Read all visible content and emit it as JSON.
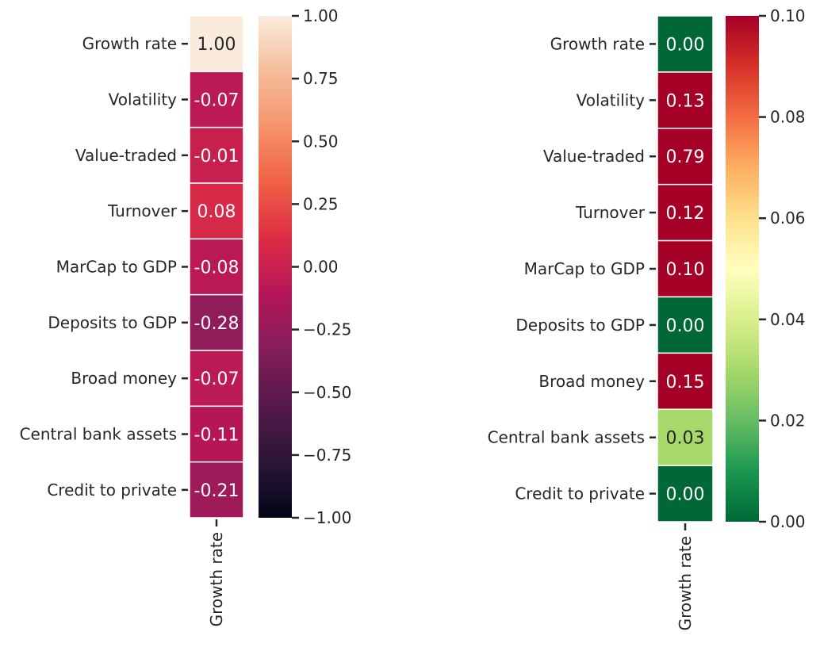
{
  "chart_data": [
    {
      "type": "heatmap",
      "title": "",
      "row_labels": [
        "Growth rate",
        "Volatility",
        "Value-traded",
        "Turnover",
        "MarCap to GDP",
        "Deposits to GDP",
        "Broad money",
        "Central bank assets",
        "Credit to private"
      ],
      "column_labels": [
        "Growth rate"
      ],
      "values": [
        1.0,
        -0.07,
        -0.01,
        0.08,
        -0.08,
        -0.28,
        -0.07,
        -0.11,
        -0.21
      ],
      "value_labels": [
        "1.00",
        "-0.07",
        "-0.01",
        "0.08",
        "-0.08",
        "-0.28",
        "-0.07",
        "-0.11",
        "-0.21"
      ],
      "colormap": "rocket",
      "color_range": [
        -1.0,
        1.0
      ],
      "colorbar_ticks": [
        1.0,
        0.75,
        0.5,
        0.25,
        0.0,
        -0.25,
        -0.5,
        -0.75,
        -1.0
      ],
      "colorbar_tick_labels": [
        "1.00",
        "0.75",
        "0.50",
        "0.25",
        "0.00",
        "−0.25",
        "−0.50",
        "−0.75",
        "−1.00"
      ],
      "colorbar_position": "right",
      "grid": false
    },
    {
      "type": "heatmap",
      "title": "",
      "row_labels": [
        "Growth rate",
        "Volatility",
        "Value-traded",
        "Turnover",
        "MarCap to GDP",
        "Deposits to GDP",
        "Broad money",
        "Central bank assets",
        "Credit to private"
      ],
      "column_labels": [
        "Growth rate"
      ],
      "values": [
        0.0,
        0.13,
        0.79,
        0.12,
        0.1,
        0.0,
        0.15,
        0.03,
        0.0
      ],
      "value_labels": [
        "0.00",
        "0.13",
        "0.79",
        "0.12",
        "0.10",
        "0.00",
        "0.15",
        "0.03",
        "0.00"
      ],
      "colormap": "RdYlGn_r",
      "color_range": [
        0.0,
        0.1
      ],
      "colorbar_ticks": [
        0.1,
        0.08,
        0.06,
        0.04,
        0.02,
        0.0
      ],
      "colorbar_tick_labels": [
        "0.10",
        "0.08",
        "0.06",
        "0.04",
        "0.02",
        "0.00"
      ],
      "colorbar_position": "right",
      "grid": false
    }
  ],
  "colors": {
    "rocket": [
      "#03051a",
      "#2a1636",
      "#55184a",
      "#841e5a",
      "#b41658",
      "#dd2c45",
      "#f06043",
      "#f5936a",
      "#f6bc9a",
      "#faebdd"
    ],
    "rdylgn_r": [
      "#006837",
      "#1a9850",
      "#66bd63",
      "#a6d96a",
      "#d9ef8b",
      "#ffffbf",
      "#fee08b",
      "#fdae61",
      "#f46d43",
      "#d73027",
      "#a50026"
    ],
    "text_dark": "#262626",
    "cell_border": "#ffffff"
  }
}
